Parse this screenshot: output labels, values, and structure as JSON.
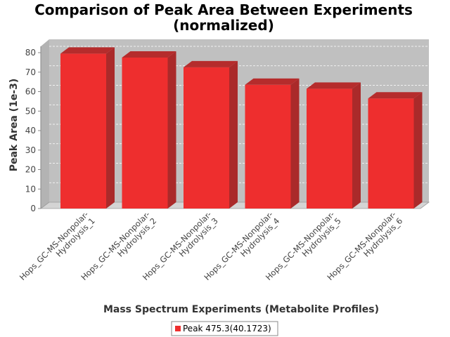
{
  "chart_data": {
    "type": "bar",
    "title_line1": "Comparison of Peak Area Between Experiments",
    "title_line2": "(normalized)",
    "xlabel": "Mass Spectrum Experiments (Metabolite Profiles)",
    "ylabel": "Peak Area (1e-3)",
    "ylim": [
      0,
      85
    ],
    "yticks": [
      0,
      10,
      20,
      30,
      40,
      50,
      60,
      70,
      80
    ],
    "categories": [
      [
        "Hops_GC-MS-Nonpolar-",
        "Hydrolysis_1"
      ],
      [
        "Hops_GC-MS-Nonpolar-",
        "Hydrolysis_2"
      ],
      [
        "Hops_GC-MS-Nonpolar-",
        "Hydrolysis_3"
      ],
      [
        "Hops_GC-MS-Nonpolar-",
        "Hydrolysis_4"
      ],
      [
        "Hops_GC-MS-Nonpolar-",
        "Hydrolysis_5"
      ],
      [
        "Hops_GC-MS-Nonpolar-",
        "Hydrolysis_6"
      ]
    ],
    "series": [
      {
        "name": "Peak 475.3(40.1723)",
        "color": "#ee2e2e",
        "values": [
          79.5,
          77.5,
          72.5,
          63.5,
          61.5,
          56.5
        ]
      }
    ],
    "grid": true,
    "legend_position": "bottom-center",
    "three_d": true
  }
}
